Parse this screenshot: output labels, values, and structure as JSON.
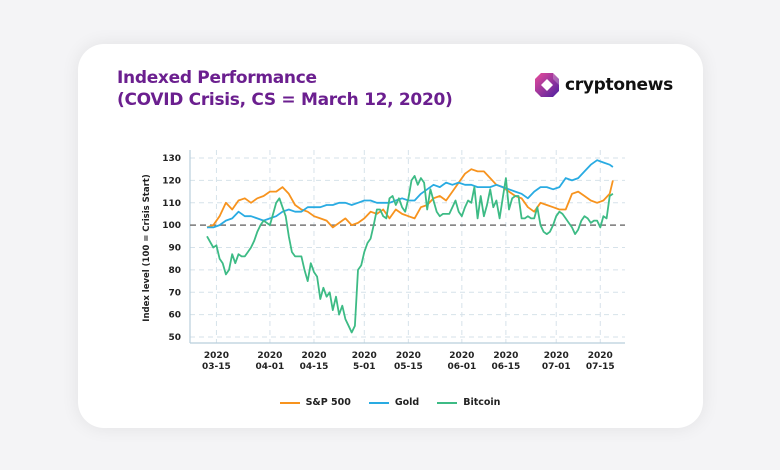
{
  "header": {
    "title_line1": "Indexed Performance",
    "title_line2": "(COVID Crisis, CS = March 12, 2020)",
    "logo_text": "cryptonews"
  },
  "colors": {
    "sp500": "#f7931e",
    "gold": "#29abe2",
    "bitcoin": "#3dbb85",
    "title": "#6b1f8f"
  },
  "chart_data": {
    "type": "line",
    "title": "Indexed Performance (COVID Crisis, CS = March 12, 2020)",
    "xlabel": "",
    "ylabel": "Index level (100 = Crisis Start)",
    "ylim": [
      50,
      130
    ],
    "yticks": [
      50,
      60,
      70,
      80,
      90,
      100,
      110,
      120,
      130
    ],
    "reference_line": 100,
    "grid": true,
    "legend_position": "bottom",
    "x_range_days": [
      0,
      130
    ],
    "x_start_date": "2020-03-12",
    "xticks": [
      {
        "day": 3,
        "line1": "2020",
        "line2": "03-15"
      },
      {
        "day": 20,
        "line1": "2020",
        "line2": "04-01"
      },
      {
        "day": 34,
        "line1": "2020",
        "line2": "04-15"
      },
      {
        "day": 50,
        "line1": "2020",
        "line2": "5-01"
      },
      {
        "day": 64,
        "line1": "2020",
        "line2": "05-15"
      },
      {
        "day": 81,
        "line1": "2020",
        "line2": "06-01"
      },
      {
        "day": 95,
        "line1": "2020",
        "line2": "06-15"
      },
      {
        "day": 111,
        "line1": "2020",
        "line2": "07-01"
      },
      {
        "day": 125,
        "line1": "2020",
        "line2": "07-15"
      }
    ],
    "series": [
      {
        "name": "S&P 500",
        "key": "sp500",
        "x": [
          0,
          2,
          4,
          6,
          8,
          10,
          12,
          14,
          16,
          18,
          20,
          22,
          24,
          26,
          28,
          30,
          32,
          34,
          36,
          38,
          40,
          42,
          44,
          46,
          48,
          50,
          52,
          54,
          56,
          58,
          60,
          62,
          64,
          66,
          68,
          70,
          72,
          74,
          76,
          78,
          80,
          82,
          84,
          86,
          88,
          90,
          92,
          94,
          96,
          98,
          100,
          102,
          104,
          106,
          108,
          110,
          112,
          114,
          116,
          118,
          120,
          122,
          124,
          126,
          128,
          129
        ],
        "values": [
          99,
          100,
          104,
          110,
          107,
          111,
          112,
          110,
          112,
          113,
          115,
          115,
          117,
          114,
          109,
          107,
          106,
          104,
          103,
          102,
          99,
          101,
          103,
          100,
          101,
          103,
          106,
          105,
          107,
          103,
          107,
          105,
          104,
          103,
          108,
          109,
          112,
          113,
          111,
          115,
          119,
          123,
          125,
          124,
          124,
          121,
          118,
          117,
          115,
          113,
          112,
          108,
          106,
          110,
          109,
          108,
          107,
          107,
          114,
          115,
          113,
          111,
          110,
          111,
          114,
          120
        ]
      },
      {
        "name": "Gold",
        "key": "gold",
        "x": [
          0,
          2,
          4,
          6,
          8,
          10,
          12,
          14,
          16,
          18,
          20,
          22,
          24,
          26,
          28,
          30,
          32,
          34,
          36,
          38,
          40,
          42,
          44,
          46,
          48,
          50,
          52,
          54,
          56,
          58,
          60,
          62,
          64,
          66,
          68,
          70,
          72,
          74,
          76,
          78,
          80,
          82,
          84,
          86,
          88,
          90,
          92,
          94,
          96,
          98,
          100,
          102,
          104,
          106,
          108,
          110,
          112,
          114,
          116,
          118,
          120,
          122,
          124,
          126,
          128,
          129
        ],
        "values": [
          99,
          99,
          100,
          102,
          103,
          106,
          104,
          104,
          103,
          102,
          103,
          104,
          106,
          107,
          106,
          106,
          108,
          108,
          108,
          109,
          109,
          110,
          110,
          109,
          110,
          111,
          111,
          110,
          110,
          110,
          111,
          112,
          111,
          111,
          114,
          116,
          118,
          117,
          119,
          118,
          119,
          118,
          118,
          117,
          117,
          117,
          118,
          117,
          116,
          115,
          114,
          112,
          115,
          117,
          117,
          116,
          117,
          121,
          120,
          121,
          124,
          127,
          129,
          128,
          127,
          126
        ]
      },
      {
        "name": "Bitcoin",
        "key": "bitcoin",
        "x": [
          0,
          2,
          3,
          4,
          5,
          6,
          7,
          8,
          9,
          10,
          11,
          12,
          13,
          14,
          15,
          16,
          17,
          18,
          19,
          20,
          21,
          22,
          23,
          24,
          25,
          26,
          27,
          28,
          29,
          30,
          31,
          32,
          33,
          34,
          35,
          36,
          37,
          38,
          39,
          40,
          41,
          42,
          43,
          44,
          45,
          46,
          47,
          48,
          49,
          50,
          51,
          52,
          53,
          54,
          55,
          56,
          57,
          58,
          59,
          60,
          61,
          62,
          63,
          64,
          65,
          66,
          67,
          68,
          69,
          70,
          71,
          72,
          73,
          74,
          75,
          76,
          77,
          78,
          79,
          80,
          81,
          82,
          83,
          84,
          85,
          86,
          87,
          88,
          89,
          90,
          91,
          92,
          93,
          94,
          95,
          96,
          97,
          98,
          99,
          100,
          101,
          102,
          103,
          104,
          105,
          106,
          107,
          108,
          109,
          110,
          111,
          112,
          113,
          114,
          115,
          116,
          117,
          118,
          119,
          120,
          121,
          122,
          123,
          124,
          125,
          126,
          127,
          128,
          129
        ],
        "values": [
          95,
          90,
          91,
          85,
          83,
          78,
          80,
          87,
          83,
          87,
          86,
          86,
          88,
          90,
          93,
          97,
          100,
          102,
          101,
          100,
          105,
          110,
          112,
          108,
          104,
          95,
          88,
          86,
          86,
          86,
          80,
          75,
          83,
          79,
          77,
          67,
          72,
          68,
          70,
          62,
          68,
          60,
          64,
          58,
          55,
          52,
          55,
          80,
          82,
          88,
          92,
          94,
          100,
          107,
          107,
          104,
          103,
          112,
          113,
          109,
          112,
          108,
          106,
          112,
          120,
          122,
          118,
          121,
          119,
          107,
          116,
          111,
          106,
          104,
          105,
          105,
          105,
          108,
          111,
          106,
          104,
          108,
          111,
          110,
          117,
          103,
          113,
          104,
          109,
          116,
          108,
          111,
          103,
          112,
          121,
          107,
          112,
          113,
          113,
          103,
          103,
          104,
          103,
          103,
          108,
          100,
          97,
          96,
          97,
          100,
          104,
          106,
          105,
          103,
          101,
          99,
          96,
          98,
          102,
          104,
          103,
          101,
          102,
          102,
          99,
          104,
          103,
          113,
          114
        ]
      }
    ]
  },
  "legend": {
    "items": [
      {
        "label": "S&P 500",
        "key": "sp500"
      },
      {
        "label": "Gold",
        "key": "gold"
      },
      {
        "label": "Bitcoin",
        "key": "bitcoin"
      }
    ]
  }
}
